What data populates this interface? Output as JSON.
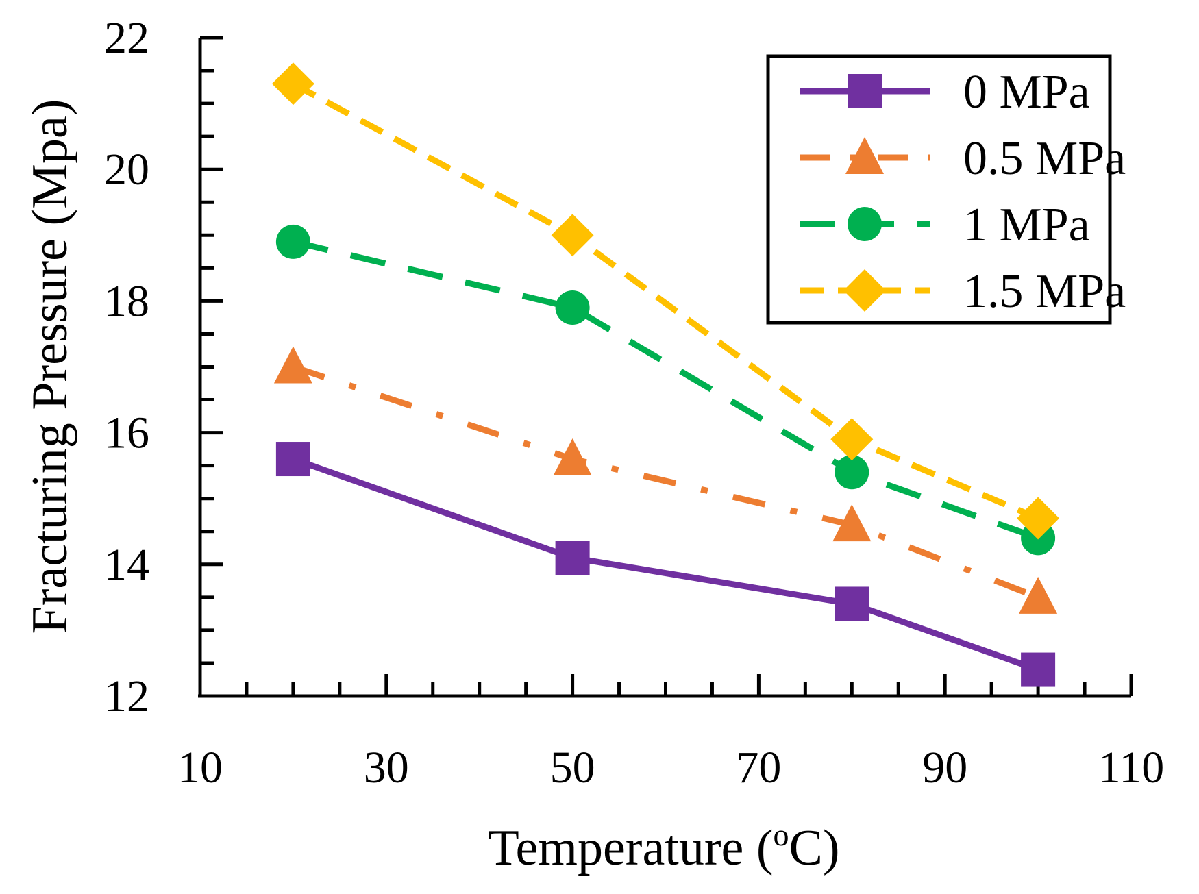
{
  "chart_data": {
    "type": "line",
    "title": "",
    "xlabel": "Temperature (",
    "xlabel_sup": "o",
    "xlabel_unit": "C)",
    "ylabel": "Fracturing Pressure (Mpa)",
    "xlim": [
      10,
      110
    ],
    "ylim": [
      12,
      22
    ],
    "x_ticks": [
      "10",
      "30",
      "50",
      "70",
      "90",
      "110"
    ],
    "y_ticks": [
      "12",
      "14",
      "16",
      "18",
      "20",
      "22"
    ],
    "x": [
      20,
      50,
      80,
      100
    ],
    "legend_position": "top-right",
    "series": [
      {
        "name": "0 MPa",
        "values": [
          15.6,
          14.1,
          13.4,
          12.4
        ],
        "color": "#7030A0",
        "marker": "square",
        "dash": "solid"
      },
      {
        "name": "0.5 MPa",
        "values": [
          17.0,
          15.6,
          14.6,
          13.5
        ],
        "color": "#ED7D31",
        "marker": "triangle",
        "dash": "dashdot"
      },
      {
        "name": "1 MPa",
        "values": [
          18.9,
          17.9,
          15.4,
          14.4
        ],
        "color": "#00B050",
        "marker": "circle",
        "dash": "dash"
      },
      {
        "name": "1.5 MPa",
        "values": [
          21.3,
          19.0,
          15.9,
          14.7
        ],
        "color": "#FFC000",
        "marker": "diamond",
        "dash": "shortdash"
      }
    ]
  }
}
